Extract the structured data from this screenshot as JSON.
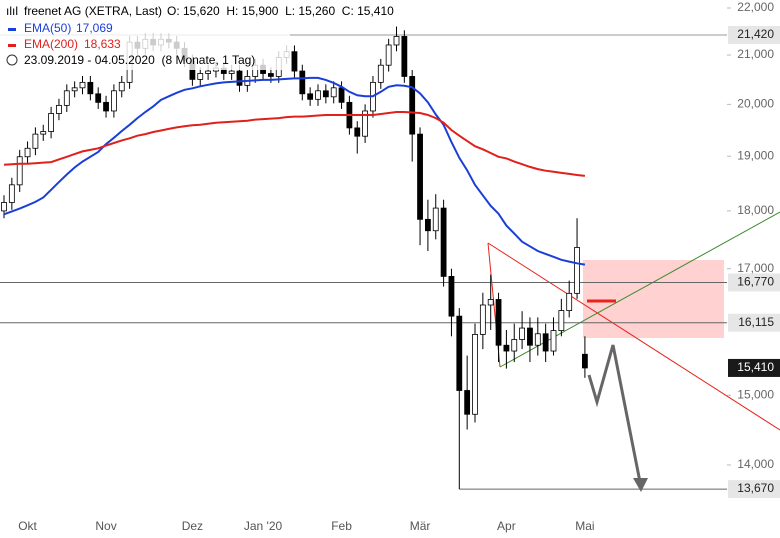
{
  "chart_data": {
    "type": "candlestick",
    "title": "freenet AG (XETRA, Last)",
    "info": "O: 15,620  H: 15,900  L: 15,260  C: 15,410",
    "subtitle": "23.09.2019 - 04.05.2020  (8 Monate, 1 Tag)",
    "categories": [
      null,
      null,
      null,
      "Okt",
      null,
      null,
      null,
      null,
      null,
      null,
      null,
      null,
      null,
      "Nov",
      null,
      null,
      null,
      null,
      null,
      null,
      null,
      null,
      null,
      null,
      "Dez",
      null,
      null,
      null,
      null,
      null,
      null,
      null,
      null,
      "Jan '20",
      null,
      null,
      null,
      null,
      null,
      null,
      null,
      null,
      null,
      "Feb",
      null,
      null,
      null,
      null,
      null,
      null,
      null,
      null,
      null,
      "Mär",
      null,
      null,
      null,
      null,
      null,
      null,
      null,
      null,
      null,
      null,
      "Apr",
      null,
      null,
      null,
      null,
      null,
      null,
      null,
      null,
      null,
      "Mai"
    ],
    "open": [
      18000,
      18150,
      18470,
      18990,
      19150,
      19420,
      19470,
      19820,
      19980,
      20270,
      20330,
      20440,
      20210,
      20040,
      19870,
      20270,
      20440,
      21270,
      21140,
      21330,
      21210,
      21330,
      21270,
      21140,
      20880,
      20500,
      20620,
      20670,
      20730,
      20620,
      20670,
      20380,
      20560,
      20790,
      20620,
      20560,
      20950,
      21070,
      20670,
      20210,
      20100,
      20270,
      20150,
      20330,
      20040,
      19540,
      19380,
      19870,
      20440,
      20790,
      21210,
      21390,
      20560,
      19420,
      17850,
      17650,
      18050,
      16870,
      16220,
      15070,
      14720,
      15930,
      16400,
      16490,
      15760,
      15670,
      15850,
      16030,
      15760,
      15940,
      15670,
      15990,
      16310,
      16590,
      15620
    ],
    "high": [
      18280,
      18600,
      19120,
      19280,
      19550,
      19600,
      19950,
      20110,
      20400,
      20460,
      20570,
      20570,
      20340,
      20170,
      20400,
      20570,
      21400,
      21400,
      21460,
      21460,
      21460,
      21460,
      21400,
      21270,
      21010,
      20750,
      20800,
      20860,
      20860,
      20800,
      20800,
      20690,
      20920,
      20920,
      20750,
      21080,
      21200,
      21200,
      20800,
      20340,
      20400,
      20400,
      20460,
      20460,
      20170,
      19670,
      20000,
      20570,
      20920,
      21340,
      21600,
      21520,
      20690,
      19550,
      18200,
      18300,
      18200,
      17000,
      16350,
      15600,
      16100,
      16600,
      16900,
      16600,
      16000,
      16100,
      16300,
      16200,
      16200,
      16100,
      16200,
      16500,
      16800,
      17870,
      15900
    ],
    "low": [
      17870,
      18020,
      18340,
      18860,
      19020,
      19290,
      19340,
      19690,
      19850,
      20140,
      20200,
      20080,
      19910,
      19740,
      19740,
      20140,
      20310,
      21010,
      21010,
      21080,
      21080,
      21140,
      21010,
      20750,
      20370,
      20370,
      20490,
      20540,
      20490,
      20490,
      20250,
      20250,
      20430,
      20490,
      20430,
      20430,
      20820,
      20540,
      20080,
      19970,
      19970,
      20020,
      20020,
      19910,
      19410,
      19050,
      19250,
      19740,
      20310,
      20660,
      21080,
      20430,
      18900,
      17400,
      17300,
      17500,
      16700,
      15900,
      13670,
      14500,
      14600,
      15700,
      16000,
      15500,
      15400,
      15500,
      15700,
      15500,
      15600,
      15500,
      15600,
      15900,
      16200,
      16500,
      15260
    ],
    "close": [
      18150,
      18470,
      18990,
      19150,
      19420,
      19470,
      19820,
      19980,
      20270,
      20330,
      20440,
      20210,
      20040,
      19870,
      20270,
      20440,
      21270,
      21140,
      21330,
      21210,
      21330,
      21270,
      21140,
      20880,
      20500,
      20620,
      20670,
      20730,
      20620,
      20670,
      20380,
      20560,
      20790,
      20620,
      20560,
      20950,
      21070,
      20670,
      20210,
      20100,
      20270,
      20150,
      20330,
      20040,
      19540,
      19380,
      19870,
      20440,
      20790,
      21210,
      21390,
      20560,
      19420,
      17850,
      17650,
      18050,
      16870,
      16220,
      15070,
      14720,
      15930,
      16400,
      16490,
      15760,
      15670,
      15850,
      16030,
      15760,
      15940,
      15670,
      15990,
      16310,
      16590,
      17360,
      15410
    ],
    "up_color": "#ffffff",
    "down_color": "#000000",
    "series": [
      {
        "name": "EMA(50)",
        "value_label": "17,069",
        "color": "#1a3fd8",
        "values": [
          17940,
          17990,
          18040,
          18100,
          18160,
          18240,
          18380,
          18520,
          18660,
          18790,
          18900,
          18990,
          19080,
          19230,
          19350,
          19480,
          19600,
          19730,
          19850,
          19960,
          20090,
          20160,
          20230,
          20290,
          20320,
          20360,
          20390,
          20420,
          20440,
          20450,
          20460,
          20470,
          20480,
          20490,
          20490,
          20500,
          20510,
          20520,
          20520,
          20530,
          20530,
          20490,
          20430,
          20350,
          20250,
          20180,
          20160,
          20160,
          20250,
          20350,
          20380,
          20370,
          20340,
          20220,
          20040,
          19800,
          19600,
          19270,
          18970,
          18740,
          18470,
          18280,
          18090,
          17950,
          17740,
          17600,
          17460,
          17380,
          17300,
          17250,
          17200,
          17150,
          17120,
          17090,
          17069
        ]
      },
      {
        "name": "EMA(200)",
        "value_label": "18,633",
        "color": "#e0201b",
        "values": [
          18840,
          18850,
          18860,
          18860,
          18870,
          18880,
          18890,
          18940,
          18990,
          19040,
          19090,
          19120,
          19150,
          19200,
          19250,
          19300,
          19340,
          19390,
          19420,
          19460,
          19490,
          19520,
          19550,
          19570,
          19590,
          19600,
          19620,
          19640,
          19650,
          19660,
          19670,
          19680,
          19700,
          19710,
          19720,
          19730,
          19750,
          19760,
          19760,
          19770,
          19780,
          19790,
          19790,
          19790,
          19790,
          19790,
          19790,
          19790,
          19810,
          19830,
          19850,
          19850,
          19840,
          19830,
          19790,
          19730,
          19640,
          19500,
          19390,
          19290,
          19190,
          19130,
          19060,
          18990,
          18960,
          18900,
          18850,
          18800,
          18760,
          18730,
          18710,
          18690,
          18670,
          18650,
          18633
        ]
      }
    ],
    "log": true,
    "grid": false,
    "ylim": [
      13390,
      22175
    ],
    "yticks": [
      {
        "value": 22000,
        "label": "22,000"
      },
      {
        "value": 21000,
        "label": "21,000"
      },
      {
        "value": 20000,
        "label": "20,000"
      },
      {
        "value": 19000,
        "label": "19,000"
      },
      {
        "value": 18000,
        "label": "18,000"
      },
      {
        "value": 17000,
        "label": "17,000"
      },
      {
        "value": 15000,
        "label": "15,000"
      },
      {
        "value": 14000,
        "label": "14,000"
      }
    ],
    "levels": [
      {
        "value": 21420,
        "label": "21,420"
      },
      {
        "value": 16770,
        "label": "16,770"
      },
      {
        "value": 16115,
        "label": "16,115"
      },
      {
        "value": 13670,
        "label": "13,670"
      }
    ],
    "last_price": {
      "value": 15410,
      "label": "15,410"
    }
  }
}
